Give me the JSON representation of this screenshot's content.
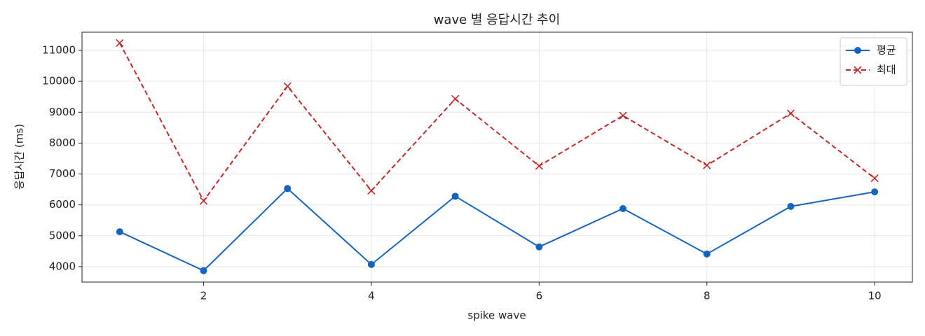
{
  "chart_data": {
    "type": "line",
    "title": "wave 별 응답시간 추이",
    "x_label": "spike wave",
    "y_label": "응답시간 (ms)",
    "x": [
      1,
      2,
      3,
      4,
      5,
      6,
      7,
      8,
      9,
      10
    ],
    "series": [
      {
        "name": "평균",
        "color": "#1565c0",
        "marker": "circle",
        "dash": "solid",
        "values": [
          5130,
          3870,
          6530,
          4070,
          6280,
          4640,
          5880,
          4410,
          5950,
          6420
        ]
      },
      {
        "name": "최대",
        "color": "#c62828",
        "marker": "x",
        "dash": "dashed",
        "values": [
          11240,
          6130,
          9840,
          6460,
          9430,
          7260,
          8890,
          7280,
          8960,
          6860
        ]
      }
    ],
    "xlim": [
      0.55,
      10.45
    ],
    "xticks": [
      2,
      4,
      6,
      8,
      10
    ],
    "ylim": [
      3500,
      11590
    ],
    "yticks": [
      4000,
      5000,
      6000,
      7000,
      8000,
      9000,
      10000,
      11000
    ],
    "grid": true,
    "legend": "upper right"
  }
}
